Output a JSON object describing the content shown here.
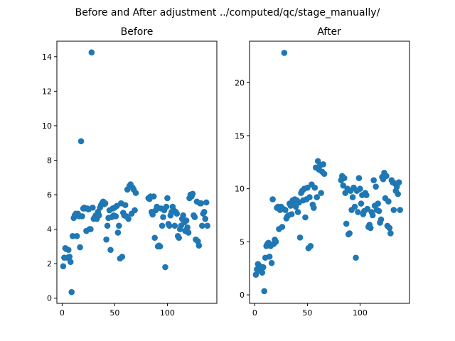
{
  "figure": {
    "suptitle": "Before and After adjustment ../computed/qc/stage_manually/"
  },
  "chart_data": [
    {
      "type": "scatter",
      "title": "Before",
      "xlabel": "",
      "ylabel": "",
      "xlim": [
        -5,
        147
      ],
      "ylim": [
        -0.3,
        14.9
      ],
      "xticks": [
        0,
        50,
        100
      ],
      "yticks": [
        0,
        2,
        4,
        6,
        8,
        10,
        12,
        14
      ],
      "grid": false,
      "color": "#1f77b4",
      "points": [
        [
          1,
          1.85
        ],
        [
          2,
          2.35
        ],
        [
          3,
          2.9
        ],
        [
          4,
          2.85
        ],
        [
          5,
          2.35
        ],
        [
          6,
          2.8
        ],
        [
          7,
          2.4
        ],
        [
          8,
          2.1
        ],
        [
          9,
          0.35
        ],
        [
          10,
          3.6
        ],
        [
          11,
          4.65
        ],
        [
          12,
          4.8
        ],
        [
          13,
          4.9
        ],
        [
          14,
          3.6
        ],
        [
          15,
          4.9
        ],
        [
          16,
          4.75
        ],
        [
          17,
          2.95
        ],
        [
          18,
          9.1
        ],
        [
          19,
          4.75
        ],
        [
          20,
          5.2
        ],
        [
          21,
          5.25
        ],
        [
          22,
          5.2
        ],
        [
          23,
          3.9
        ],
        [
          24,
          5.2
        ],
        [
          25,
          5.15
        ],
        [
          26,
          4.0
        ],
        [
          27,
          4.0
        ],
        [
          28,
          14.25
        ],
        [
          29,
          5.25
        ],
        [
          30,
          4.6
        ],
        [
          31,
          4.7
        ],
        [
          32,
          4.8
        ],
        [
          33,
          4.6
        ],
        [
          34,
          5.0
        ],
        [
          35,
          4.8
        ],
        [
          36,
          5.25
        ],
        [
          37,
          5.4
        ],
        [
          38,
          5.5
        ],
        [
          39,
          5.6
        ],
        [
          40,
          5.45
        ],
        [
          41,
          5.5
        ],
        [
          42,
          3.4
        ],
        [
          43,
          4.2
        ],
        [
          44,
          4.65
        ],
        [
          45,
          5.1
        ],
        [
          46,
          2.8
        ],
        [
          47,
          4.7
        ],
        [
          48,
          5.2
        ],
        [
          49,
          4.8
        ],
        [
          50,
          5.25
        ],
        [
          51,
          4.75
        ],
        [
          52,
          5.35
        ],
        [
          53,
          3.8
        ],
        [
          54,
          4.2
        ],
        [
          55,
          2.3
        ],
        [
          56,
          5.5
        ],
        [
          57,
          2.4
        ],
        [
          58,
          4.95
        ],
        [
          59,
          4.8
        ],
        [
          60,
          5.4
        ],
        [
          61,
          4.75
        ],
        [
          62,
          6.3
        ],
        [
          63,
          4.6
        ],
        [
          64,
          6.5
        ],
        [
          65,
          6.6
        ],
        [
          66,
          4.9
        ],
        [
          67,
          6.4
        ],
        [
          68,
          6.3
        ],
        [
          69,
          5.1
        ],
        [
          70,
          6.1
        ],
        [
          82,
          5.8
        ],
        [
          83,
          5.75
        ],
        [
          84,
          5.9
        ],
        [
          85,
          5.0
        ],
        [
          86,
          4.85
        ],
        [
          87,
          5.9
        ],
        [
          88,
          3.5
        ],
        [
          89,
          5.1
        ],
        [
          90,
          5.3
        ],
        [
          91,
          3.0
        ],
        [
          92,
          3.05
        ],
        [
          93,
          3.0
        ],
        [
          94,
          5.2
        ],
        [
          95,
          4.2
        ],
        [
          96,
          4.7
        ],
        [
          97,
          5.1
        ],
        [
          98,
          1.8
        ],
        [
          99,
          5.3
        ],
        [
          100,
          5.8
        ],
        [
          101,
          4.3
        ],
        [
          102,
          4.2
        ],
        [
          103,
          4.8
        ],
        [
          104,
          5.0
        ],
        [
          105,
          5.3
        ],
        [
          106,
          5.1
        ],
        [
          107,
          4.2
        ],
        [
          108,
          5.0
        ],
        [
          109,
          4.9
        ],
        [
          110,
          3.6
        ],
        [
          111,
          3.5
        ],
        [
          112,
          4.0
        ],
        [
          113,
          4.2
        ],
        [
          114,
          4.6
        ],
        [
          115,
          4.8
        ],
        [
          116,
          4.4
        ],
        [
          117,
          3.9
        ],
        [
          118,
          4.5
        ],
        [
          119,
          4.1
        ],
        [
          120,
          3.8
        ],
        [
          121,
          5.8
        ],
        [
          122,
          6.0
        ],
        [
          123,
          5.9
        ],
        [
          124,
          6.05
        ],
        [
          125,
          4.8
        ],
        [
          126,
          4.7
        ],
        [
          127,
          3.4
        ],
        [
          128,
          5.6
        ],
        [
          129,
          3.3
        ],
        [
          130,
          3.05
        ],
        [
          131,
          5.5
        ],
        [
          132,
          5.5
        ],
        [
          133,
          4.2
        ],
        [
          134,
          4.9
        ],
        [
          135,
          5.0
        ],
        [
          136,
          4.6
        ],
        [
          137,
          5.55
        ],
        [
          138,
          4.2
        ]
      ]
    },
    {
      "type": "scatter",
      "title": "After",
      "xlabel": "",
      "ylabel": "",
      "xlim": [
        -5,
        147
      ],
      "ylim": [
        -0.8,
        23.9
      ],
      "xticks": [
        0,
        50,
        100
      ],
      "yticks": [
        0,
        5,
        10,
        15,
        20
      ],
      "grid": false,
      "color": "#1f77b4",
      "points": [
        [
          1,
          1.9
        ],
        [
          2,
          2.4
        ],
        [
          3,
          2.9
        ],
        [
          4,
          2.3
        ],
        [
          5,
          2.7
        ],
        [
          6,
          2.5
        ],
        [
          7,
          2.1
        ],
        [
          8,
          2.6
        ],
        [
          9,
          0.35
        ],
        [
          10,
          3.5
        ],
        [
          11,
          4.6
        ],
        [
          12,
          4.8
        ],
        [
          13,
          4.9
        ],
        [
          14,
          3.6
        ],
        [
          15,
          4.6
        ],
        [
          16,
          3.0
        ],
        [
          17,
          9.0
        ],
        [
          18,
          4.8
        ],
        [
          19,
          5.2
        ],
        [
          20,
          5.0
        ],
        [
          21,
          8.2
        ],
        [
          22,
          8.3
        ],
        [
          23,
          6.2
        ],
        [
          24,
          8.0
        ],
        [
          25,
          8.3
        ],
        [
          26,
          6.4
        ],
        [
          27,
          8.1
        ],
        [
          28,
          22.8
        ],
        [
          29,
          8.0
        ],
        [
          30,
          7.2
        ],
        [
          31,
          7.4
        ],
        [
          32,
          7.5
        ],
        [
          33,
          8.6
        ],
        [
          34,
          8.4
        ],
        [
          35,
          7.6
        ],
        [
          36,
          8.9
        ],
        [
          37,
          8.8
        ],
        [
          38,
          9.0
        ],
        [
          39,
          8.3
        ],
        [
          40,
          8.9
        ],
        [
          41,
          7.8
        ],
        [
          42,
          8.7
        ],
        [
          43,
          5.4
        ],
        [
          44,
          9.6
        ],
        [
          45,
          9.8
        ],
        [
          46,
          8.9
        ],
        [
          47,
          10.0
        ],
        [
          48,
          7.3
        ],
        [
          49,
          9.0
        ],
        [
          50,
          10.1
        ],
        [
          51,
          4.4
        ],
        [
          52,
          9.2
        ],
        [
          53,
          4.6
        ],
        [
          54,
          10.4
        ],
        [
          55,
          8.5
        ],
        [
          56,
          8.2
        ],
        [
          57,
          10.1
        ],
        [
          58,
          12.0
        ],
        [
          59,
          9.2
        ],
        [
          60,
          12.6
        ],
        [
          61,
          11.8
        ],
        [
          62,
          12.2
        ],
        [
          63,
          9.6
        ],
        [
          64,
          11.6
        ],
        [
          65,
          12.3
        ],
        [
          66,
          11.4
        ],
        [
          82,
          10.8
        ],
        [
          83,
          11.2
        ],
        [
          84,
          10.3
        ],
        [
          85,
          11.0
        ],
        [
          86,
          9.6
        ],
        [
          87,
          6.7
        ],
        [
          88,
          10.0
        ],
        [
          89,
          5.7
        ],
        [
          90,
          5.8
        ],
        [
          91,
          9.8
        ],
        [
          92,
          8.0
        ],
        [
          93,
          9.2
        ],
        [
          94,
          10.1
        ],
        [
          95,
          8.3
        ],
        [
          96,
          3.5
        ],
        [
          97,
          9.8
        ],
        [
          98,
          7.8
        ],
        [
          99,
          11.0
        ],
        [
          100,
          10.0
        ],
        [
          101,
          8.6
        ],
        [
          102,
          9.4
        ],
        [
          103,
          7.6
        ],
        [
          104,
          7.9
        ],
        [
          105,
          9.6
        ],
        [
          106,
          9.4
        ],
        [
          107,
          8.1
        ],
        [
          108,
          6.4
        ],
        [
          109,
          6.6
        ],
        [
          110,
          6.3
        ],
        [
          111,
          7.8
        ],
        [
          112,
          7.5
        ],
        [
          113,
          10.8
        ],
        [
          114,
          8.4
        ],
        [
          115,
          10.2
        ],
        [
          116,
          8.0
        ],
        [
          117,
          8.6
        ],
        [
          118,
          7.9
        ],
        [
          119,
          6.8
        ],
        [
          120,
          7.1
        ],
        [
          121,
          11.1
        ],
        [
          122,
          10.9
        ],
        [
          123,
          11.5
        ],
        [
          124,
          9.1
        ],
        [
          125,
          11.2
        ],
        [
          126,
          6.5
        ],
        [
          127,
          8.8
        ],
        [
          128,
          6.3
        ],
        [
          129,
          5.8
        ],
        [
          130,
          10.8
        ],
        [
          131,
          10.6
        ],
        [
          132,
          8.0
        ],
        [
          133,
          10.5
        ],
        [
          134,
          9.8
        ],
        [
          135,
          10.2
        ],
        [
          136,
          9.5
        ],
        [
          137,
          10.6
        ],
        [
          138,
          8.0
        ]
      ]
    }
  ]
}
